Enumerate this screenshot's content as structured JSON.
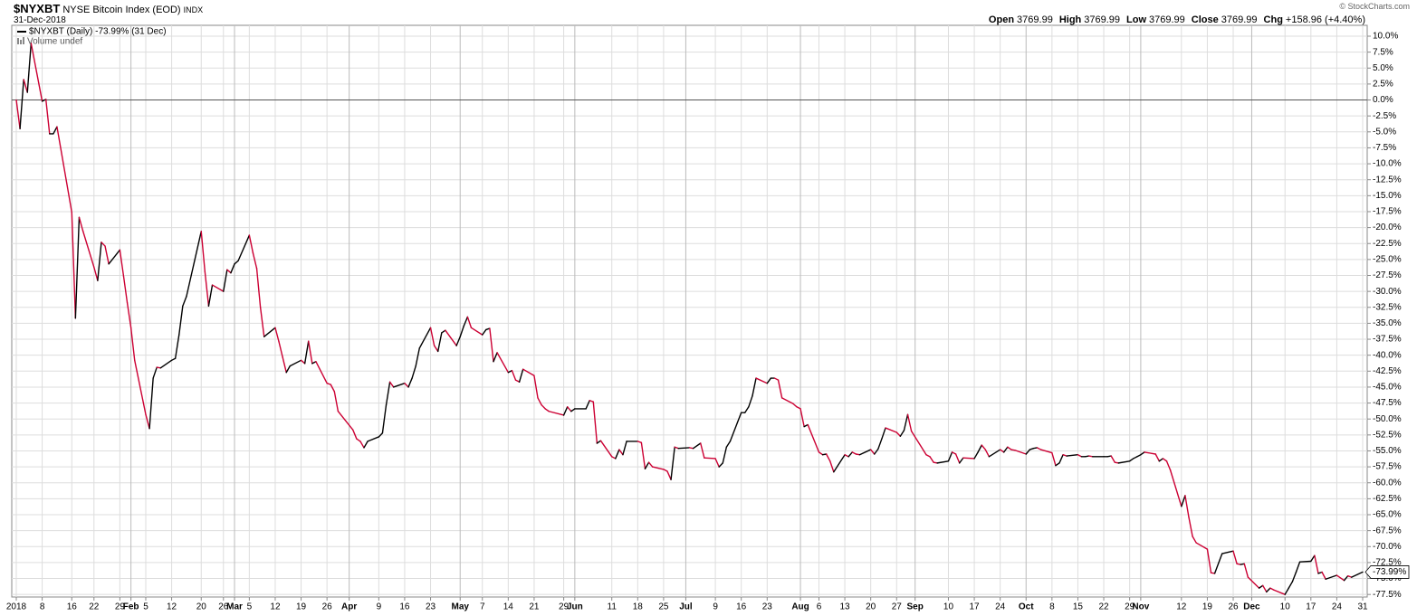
{
  "chart_data": {
    "type": "line",
    "symbol": "$NYXBT",
    "title": "NYSE Bitcoin Index (EOD)",
    "exchange": "INDX",
    "date": "31-Dec-2018",
    "quote": [
      {
        "label": "Open",
        "value": "3769.99"
      },
      {
        "label": "High",
        "value": "3769.99"
      },
      {
        "label": "Low",
        "value": "3769.99"
      },
      {
        "label": "Close",
        "value": "3769.99"
      },
      {
        "label": "Chg",
        "value": "+158.96 (+4.40%)"
      }
    ],
    "watermark": "© StockCharts.com",
    "volume_label": "Volume undef",
    "x": [
      "2018-01-01",
      "2018-01-02",
      "2018-01-03",
      "2018-01-04",
      "2018-01-05",
      "2018-01-08",
      "2018-01-09",
      "2018-01-10",
      "2018-01-11",
      "2018-01-12",
      "2018-01-16",
      "2018-01-17",
      "2018-01-18",
      "2018-01-19",
      "2018-01-22",
      "2018-01-23",
      "2018-01-24",
      "2018-01-25",
      "2018-01-26",
      "2018-01-29",
      "2018-01-30",
      "2018-01-31",
      "2018-02-01",
      "2018-02-02",
      "2018-02-05",
      "2018-02-06",
      "2018-02-07",
      "2018-02-08",
      "2018-02-09",
      "2018-02-12",
      "2018-02-13",
      "2018-02-14",
      "2018-02-15",
      "2018-02-16",
      "2018-02-20",
      "2018-02-21",
      "2018-02-22",
      "2018-02-23",
      "2018-02-26",
      "2018-02-27",
      "2018-02-28",
      "2018-03-01",
      "2018-03-02",
      "2018-03-05",
      "2018-03-06",
      "2018-03-07",
      "2018-03-08",
      "2018-03-09",
      "2018-03-12",
      "2018-03-13",
      "2018-03-14",
      "2018-03-15",
      "2018-03-16",
      "2018-03-19",
      "2018-03-20",
      "2018-03-21",
      "2018-03-22",
      "2018-03-23",
      "2018-03-26",
      "2018-03-27",
      "2018-03-28",
      "2018-03-29",
      "2018-04-02",
      "2018-04-03",
      "2018-04-04",
      "2018-04-05",
      "2018-04-06",
      "2018-04-09",
      "2018-04-10",
      "2018-04-11",
      "2018-04-12",
      "2018-04-13",
      "2018-04-16",
      "2018-04-17",
      "2018-04-18",
      "2018-04-19",
      "2018-04-20",
      "2018-04-23",
      "2018-04-24",
      "2018-04-25",
      "2018-04-26",
      "2018-04-27",
      "2018-04-30",
      "2018-05-01",
      "2018-05-02",
      "2018-05-03",
      "2018-05-04",
      "2018-05-07",
      "2018-05-08",
      "2018-05-09",
      "2018-05-10",
      "2018-05-11",
      "2018-05-14",
      "2018-05-15",
      "2018-05-16",
      "2018-05-17",
      "2018-05-18",
      "2018-05-21",
      "2018-05-22",
      "2018-05-23",
      "2018-05-24",
      "2018-05-25",
      "2018-05-29",
      "2018-05-30",
      "2018-05-31",
      "2018-06-01",
      "2018-06-04",
      "2018-06-05",
      "2018-06-06",
      "2018-06-07",
      "2018-06-08",
      "2018-06-11",
      "2018-06-12",
      "2018-06-13",
      "2018-06-14",
      "2018-06-15",
      "2018-06-18",
      "2018-06-19",
      "2018-06-20",
      "2018-06-21",
      "2018-06-22",
      "2018-06-25",
      "2018-06-26",
      "2018-06-27",
      "2018-06-28",
      "2018-06-29",
      "2018-07-02",
      "2018-07-03",
      "2018-07-05",
      "2018-07-06",
      "2018-07-09",
      "2018-07-10",
      "2018-07-11",
      "2018-07-12",
      "2018-07-13",
      "2018-07-16",
      "2018-07-17",
      "2018-07-18",
      "2018-07-19",
      "2018-07-20",
      "2018-07-23",
      "2018-07-24",
      "2018-07-25",
      "2018-07-26",
      "2018-07-27",
      "2018-07-30",
      "2018-07-31",
      "2018-08-01",
      "2018-08-02",
      "2018-08-03",
      "2018-08-06",
      "2018-08-07",
      "2018-08-08",
      "2018-08-09",
      "2018-08-10",
      "2018-08-13",
      "2018-08-14",
      "2018-08-15",
      "2018-08-16",
      "2018-08-17",
      "2018-08-20",
      "2018-08-21",
      "2018-08-22",
      "2018-08-23",
      "2018-08-24",
      "2018-08-27",
      "2018-08-28",
      "2018-08-29",
      "2018-08-30",
      "2018-08-31",
      "2018-09-04",
      "2018-09-05",
      "2018-09-06",
      "2018-09-07",
      "2018-09-10",
      "2018-09-11",
      "2018-09-12",
      "2018-09-13",
      "2018-09-14",
      "2018-09-17",
      "2018-09-18",
      "2018-09-19",
      "2018-09-20",
      "2018-09-21",
      "2018-09-24",
      "2018-09-25",
      "2018-09-26",
      "2018-09-27",
      "2018-09-28",
      "2018-10-01",
      "2018-10-02",
      "2018-10-03",
      "2018-10-04",
      "2018-10-05",
      "2018-10-08",
      "2018-10-09",
      "2018-10-10",
      "2018-10-11",
      "2018-10-12",
      "2018-10-15",
      "2018-10-16",
      "2018-10-17",
      "2018-10-18",
      "2018-10-19",
      "2018-10-22",
      "2018-10-23",
      "2018-10-24",
      "2018-10-25",
      "2018-10-26",
      "2018-10-29",
      "2018-10-30",
      "2018-10-31",
      "2018-11-01",
      "2018-11-02",
      "2018-11-05",
      "2018-11-06",
      "2018-11-07",
      "2018-11-08",
      "2018-11-09",
      "2018-11-12",
      "2018-11-13",
      "2018-11-14",
      "2018-11-15",
      "2018-11-16",
      "2018-11-19",
      "2018-11-20",
      "2018-11-21",
      "2018-11-23",
      "2018-11-26",
      "2018-11-27",
      "2018-11-28",
      "2018-11-29",
      "2018-11-30",
      "2018-12-03",
      "2018-12-04",
      "2018-12-05",
      "2018-12-06",
      "2018-12-07",
      "2018-12-10",
      "2018-12-11",
      "2018-12-12",
      "2018-12-13",
      "2018-12-14",
      "2018-12-17",
      "2018-12-18",
      "2018-12-19",
      "2018-12-20",
      "2018-12-21",
      "2018-12-24",
      "2018-12-26",
      "2018-12-27",
      "2018-12-28",
      "2018-12-31"
    ],
    "series": [
      {
        "name": "$NYXBT (Daily) -73.99% (31 Dec)",
        "up_color": "#000000",
        "down_color": "#cc0033",
        "last_label": "-73.99%",
        "values": [
          0,
          -4.5,
          3.2,
          1.2,
          8.9,
          -0.2,
          0.1,
          -5.3,
          -5.3,
          -4.2,
          -17.6,
          -34.2,
          -18.4,
          -20.5,
          -26.2,
          -28.3,
          -22.3,
          -22.9,
          -25.7,
          -23.5,
          -27.6,
          -31.8,
          -35.7,
          -40.8,
          -49.3,
          -51.5,
          -43.6,
          -41.9,
          -42.0,
          -40.8,
          -40.5,
          -36.8,
          -32.3,
          -30.8,
          -20.6,
          -26.9,
          -32.3,
          -29.0,
          -30.0,
          -26.6,
          -27.1,
          -25.7,
          -25.2,
          -21.2,
          -24.0,
          -26.4,
          -32.5,
          -37.1,
          -35.7,
          -37.9,
          -40.3,
          -42.7,
          -41.7,
          -40.8,
          -41.3,
          -37.8,
          -41.3,
          -41.0,
          -44.4,
          -44.6,
          -45.7,
          -48.8,
          -51.7,
          -53.1,
          -53.5,
          -54.5,
          -53.5,
          -52.8,
          -52.2,
          -47.8,
          -44.2,
          -45.0,
          -44.4,
          -45.0,
          -43.6,
          -41.7,
          -38.9,
          -35.7,
          -38.5,
          -39.4,
          -36.5,
          -36.1,
          -38.5,
          -37.1,
          -35.4,
          -34.0,
          -35.7,
          -36.8,
          -36.0,
          -35.8,
          -41.0,
          -39.6,
          -42.7,
          -42.4,
          -43.9,
          -44.2,
          -42.2,
          -43.2,
          -46.7,
          -47.8,
          -48.4,
          -48.8,
          -49.4,
          -48.1,
          -48.8,
          -48.4,
          -48.4,
          -47.1,
          -47.3,
          -53.8,
          -53.4,
          -55.9,
          -56.2,
          -54.8,
          -55.6,
          -53.5,
          -53.5,
          -53.7,
          -57.8,
          -56.8,
          -57.5,
          -57.9,
          -58.2,
          -59.5,
          -54.4,
          -54.6,
          -54.5,
          -54.6,
          -53.8,
          -56.1,
          -56.2,
          -57.5,
          -56.9,
          -54.4,
          -53.5,
          -49.0,
          -49.0,
          -48.1,
          -46.4,
          -43.6,
          -44.4,
          -43.6,
          -43.6,
          -43.9,
          -46.7,
          -47.6,
          -48.1,
          -48.4,
          -51.2,
          -50.9,
          -55.2,
          -55.6,
          -55.5,
          -56.6,
          -58.3,
          -55.6,
          -55.9,
          -55.2,
          -55.5,
          -55.6,
          -54.8,
          -55.5,
          -54.7,
          -53.1,
          -51.4,
          -52.1,
          -52.7,
          -51.8,
          -49.3,
          -51.9,
          -55.6,
          -55.9,
          -56.8,
          -56.9,
          -56.6,
          -55.2,
          -55.5,
          -56.9,
          -56.1,
          -56.2,
          -55.2,
          -54.1,
          -54.8,
          -55.9,
          -54.8,
          -55.2,
          -54.4,
          -54.8,
          -54.9,
          -55.5,
          -54.8,
          -54.6,
          -54.5,
          -54.8,
          -55.3,
          -57.3,
          -56.9,
          -55.6,
          -55.8,
          -55.6,
          -55.9,
          -55.9,
          -55.8,
          -55.9,
          -55.9,
          -55.9,
          -55.8,
          -56.8,
          -56.9,
          -56.6,
          -56.2,
          -55.9,
          -55.6,
          -55.2,
          -55.5,
          -56.6,
          -56.2,
          -56.6,
          -58.0,
          -63.7,
          -62.0,
          -65.4,
          -68.4,
          -69.4,
          -70.4,
          -74.1,
          -74.2,
          -71.1,
          -70.7,
          -72.7,
          -72.8,
          -72.7,
          -74.8,
          -76.5,
          -76.1,
          -77.1,
          -76.5,
          -76.8,
          -77.5,
          -76.5,
          -75.5,
          -74.0,
          -72.4,
          -72.3,
          -71.4,
          -74.2,
          -74.0,
          -75.1,
          -74.5,
          -75.3,
          -74.6,
          -74.8,
          -73.99
        ]
      }
    ],
    "xlim": [
      "2018-01-01",
      "2018-12-31"
    ],
    "xticks": [
      {
        "value": "2018-01-01",
        "label": "2018"
      },
      {
        "value": "2018-01-08",
        "label": "8"
      },
      {
        "value": "2018-01-16",
        "label": "16"
      },
      {
        "value": "2018-01-22",
        "label": "22"
      },
      {
        "value": "2018-01-29",
        "label": "29"
      },
      {
        "value": "2018-02-01",
        "label": "Feb"
      },
      {
        "value": "2018-02-05",
        "label": "5"
      },
      {
        "value": "2018-02-12",
        "label": "12"
      },
      {
        "value": "2018-02-20",
        "label": "20"
      },
      {
        "value": "2018-02-26",
        "label": "26"
      },
      {
        "value": "2018-03-01",
        "label": "Mar"
      },
      {
        "value": "2018-03-05",
        "label": "5"
      },
      {
        "value": "2018-03-12",
        "label": "12"
      },
      {
        "value": "2018-03-19",
        "label": "19"
      },
      {
        "value": "2018-03-26",
        "label": "26"
      },
      {
        "value": "2018-04-01",
        "label": "Apr"
      },
      {
        "value": "2018-04-09",
        "label": "9"
      },
      {
        "value": "2018-04-16",
        "label": "16"
      },
      {
        "value": "2018-04-23",
        "label": "23"
      },
      {
        "value": "2018-05-01",
        "label": "May"
      },
      {
        "value": "2018-05-07",
        "label": "7"
      },
      {
        "value": "2018-05-14",
        "label": "14"
      },
      {
        "value": "2018-05-21",
        "label": "21"
      },
      {
        "value": "2018-05-29",
        "label": "29"
      },
      {
        "value": "2018-06-01",
        "label": "Jun"
      },
      {
        "value": "2018-06-11",
        "label": "11"
      },
      {
        "value": "2018-06-18",
        "label": "18"
      },
      {
        "value": "2018-06-25",
        "label": "25"
      },
      {
        "value": "2018-07-01",
        "label": "Jul"
      },
      {
        "value": "2018-07-09",
        "label": "9"
      },
      {
        "value": "2018-07-16",
        "label": "16"
      },
      {
        "value": "2018-07-23",
        "label": "23"
      },
      {
        "value": "2018-08-01",
        "label": "Aug"
      },
      {
        "value": "2018-08-06",
        "label": "6"
      },
      {
        "value": "2018-08-13",
        "label": "13"
      },
      {
        "value": "2018-08-20",
        "label": "20"
      },
      {
        "value": "2018-08-27",
        "label": "27"
      },
      {
        "value": "2018-09-01",
        "label": "Sep"
      },
      {
        "value": "2018-09-10",
        "label": "10"
      },
      {
        "value": "2018-09-17",
        "label": "17"
      },
      {
        "value": "2018-09-24",
        "label": "24"
      },
      {
        "value": "2018-10-01",
        "label": "Oct"
      },
      {
        "value": "2018-10-08",
        "label": "8"
      },
      {
        "value": "2018-10-15",
        "label": "15"
      },
      {
        "value": "2018-10-22",
        "label": "22"
      },
      {
        "value": "2018-10-29",
        "label": "29"
      },
      {
        "value": "2018-11-01",
        "label": "Nov"
      },
      {
        "value": "2018-11-12",
        "label": "12"
      },
      {
        "value": "2018-11-19",
        "label": "19"
      },
      {
        "value": "2018-11-26",
        "label": "26"
      },
      {
        "value": "2018-12-01",
        "label": "Dec"
      },
      {
        "value": "2018-12-10",
        "label": "10"
      },
      {
        "value": "2018-12-17",
        "label": "17"
      },
      {
        "value": "2018-12-24",
        "label": "24"
      },
      {
        "value": "2018-12-31",
        "label": "31"
      }
    ],
    "ylim": [
      -77.9,
      11.7
    ],
    "yticks": [
      {
        "value": 10,
        "label": "10.0%"
      },
      {
        "value": 7.5,
        "label": "7.5%"
      },
      {
        "value": 5,
        "label": "5.0%"
      },
      {
        "value": 2.5,
        "label": "2.5%"
      },
      {
        "value": 0,
        "label": "0.0%"
      },
      {
        "value": -2.5,
        "label": "-2.5%"
      },
      {
        "value": -5,
        "label": "-5.0%"
      },
      {
        "value": -7.5,
        "label": "-7.5%"
      },
      {
        "value": -10,
        "label": "-10.0%"
      },
      {
        "value": -12.5,
        "label": "-12.5%"
      },
      {
        "value": -15,
        "label": "-15.0%"
      },
      {
        "value": -17.5,
        "label": "-17.5%"
      },
      {
        "value": -20,
        "label": "-20.0%"
      },
      {
        "value": -22.5,
        "label": "-22.5%"
      },
      {
        "value": -25,
        "label": "-25.0%"
      },
      {
        "value": -27.5,
        "label": "-27.5%"
      },
      {
        "value": -30,
        "label": "-30.0%"
      },
      {
        "value": -32.5,
        "label": "-32.5%"
      },
      {
        "value": -35,
        "label": "-35.0%"
      },
      {
        "value": -37.5,
        "label": "-37.5%"
      },
      {
        "value": -40,
        "label": "-40.0%"
      },
      {
        "value": -42.5,
        "label": "-42.5%"
      },
      {
        "value": -45,
        "label": "-45.0%"
      },
      {
        "value": -47.5,
        "label": "-47.5%"
      },
      {
        "value": -50,
        "label": "-50.0%"
      },
      {
        "value": -52.5,
        "label": "-52.5%"
      },
      {
        "value": -55,
        "label": "-55.0%"
      },
      {
        "value": -57.5,
        "label": "-57.5%"
      },
      {
        "value": -60,
        "label": "-60.0%"
      },
      {
        "value": -62.5,
        "label": "-62.5%"
      },
      {
        "value": -65,
        "label": "-65.0%"
      },
      {
        "value": -67.5,
        "label": "-67.5%"
      },
      {
        "value": -70,
        "label": "-70.0%"
      },
      {
        "value": -72.5,
        "label": "-72.5%"
      },
      {
        "value": -75,
        "label": "-75.0%"
      },
      {
        "value": -77.5,
        "label": "-77.5%"
      }
    ],
    "grid": true,
    "reference_line": 0
  }
}
